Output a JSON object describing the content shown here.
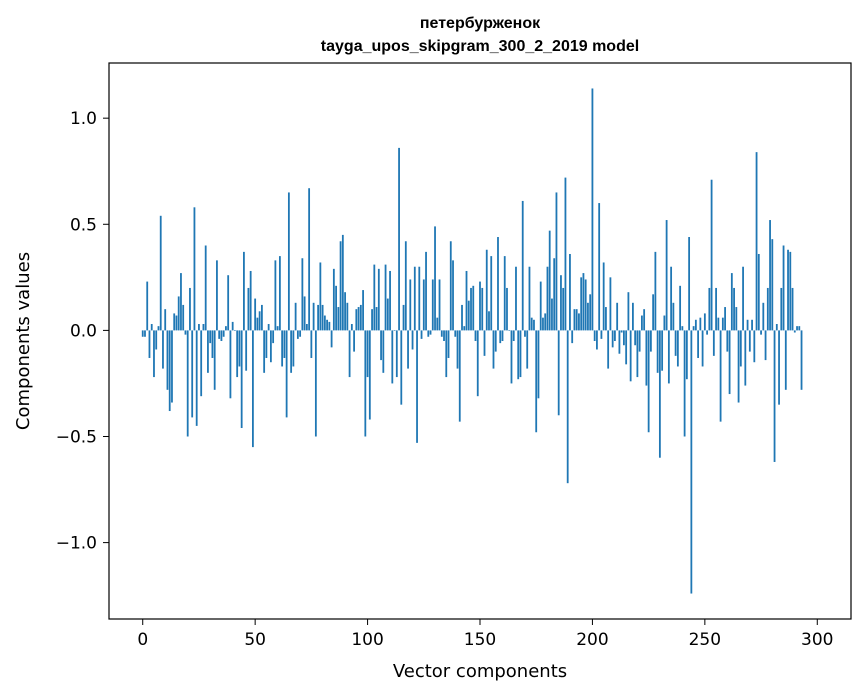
{
  "chart_data": {
    "type": "bar",
    "title": "петербурженок",
    "subtitle": "tayga_upos_skipgram_300_2_2019 model",
    "xlabel": "Vector components",
    "ylabel": "Components values",
    "xlim": [
      -15,
      315
    ],
    "ylim": [
      -1.36,
      1.26
    ],
    "xticks": [
      0,
      50,
      100,
      150,
      200,
      250,
      300
    ],
    "xtick_labels": [
      "0",
      "50",
      "100",
      "150",
      "200",
      "250",
      "300"
    ],
    "yticks": [
      -1.0,
      -0.5,
      0.0,
      0.5,
      1.0
    ],
    "ytick_labels": [
      "−1.0",
      "−0.5",
      "0.0",
      "0.5",
      "1.0"
    ],
    "bar_color": "#1f77b4",
    "values": [
      -0.03,
      -0.03,
      0.23,
      -0.13,
      0.03,
      -0.22,
      -0.09,
      0.02,
      0.54,
      -0.18,
      0.1,
      -0.28,
      -0.38,
      -0.34,
      0.08,
      0.07,
      0.16,
      0.27,
      0.12,
      -0.02,
      -0.5,
      0.2,
      -0.41,
      0.58,
      -0.45,
      0.03,
      -0.31,
      0.03,
      0.4,
      -0.2,
      -0.06,
      -0.13,
      -0.28,
      0.33,
      -0.04,
      -0.05,
      -0.03,
      0.02,
      0.26,
      -0.32,
      0.04,
      0.0,
      -0.22,
      -0.17,
      -0.46,
      0.37,
      -0.19,
      0.2,
      0.28,
      -0.55,
      0.15,
      0.06,
      0.09,
      0.12,
      -0.2,
      -0.13,
      0.03,
      -0.15,
      -0.06,
      0.33,
      0.02,
      0.35,
      -0.17,
      -0.13,
      -0.41,
      0.65,
      -0.2,
      -0.17,
      0.13,
      -0.04,
      -0.03,
      0.34,
      0.16,
      0.03,
      0.67,
      -0.13,
      0.13,
      -0.5,
      0.12,
      0.32,
      0.12,
      0.07,
      0.05,
      0.04,
      -0.08,
      0.29,
      0.21,
      0.11,
      0.42,
      0.45,
      0.18,
      0.13,
      -0.22,
      0.03,
      -0.1,
      0.1,
      0.11,
      0.12,
      0.19,
      -0.5,
      -0.22,
      -0.42,
      0.1,
      0.31,
      0.11,
      0.29,
      -0.14,
      -0.2,
      0.31,
      0.15,
      0.28,
      -0.25,
      0.0,
      -0.22,
      0.86,
      -0.35,
      0.12,
      0.42,
      -0.18,
      0.24,
      -0.09,
      0.3,
      -0.53,
      0.3,
      -0.04,
      0.24,
      0.37,
      -0.03,
      -0.02,
      0.24,
      0.49,
      0.06,
      0.24,
      -0.03,
      -0.05,
      -0.22,
      -0.13,
      0.42,
      0.33,
      -0.03,
      -0.18,
      -0.43,
      0.12,
      0.02,
      0.28,
      0.14,
      0.2,
      0.21,
      -0.05,
      -0.31,
      0.23,
      0.2,
      -0.12,
      0.38,
      0.09,
      0.35,
      -0.18,
      -0.1,
      0.44,
      -0.06,
      -0.05,
      0.35,
      0.2,
      0.0,
      -0.25,
      -0.05,
      0.3,
      -0.23,
      -0.22,
      0.61,
      -0.03,
      -0.18,
      0.3,
      0.06,
      0.05,
      -0.48,
      -0.32,
      0.23,
      0.06,
      0.08,
      0.3,
      0.47,
      0.15,
      0.34,
      0.65,
      -0.4,
      0.26,
      0.2,
      0.72,
      -0.72,
      0.36,
      -0.06,
      0.1,
      0.1,
      0.08,
      0.25,
      0.27,
      0.24,
      0.13,
      0.17,
      1.14,
      -0.05,
      -0.09,
      0.6,
      -0.04,
      0.32,
      0.11,
      -0.18,
      0.25,
      -0.08,
      -0.05,
      0.13,
      -0.11,
      -0.01,
      -0.07,
      -0.16,
      0.18,
      -0.24,
      0.13,
      -0.07,
      -0.22,
      -0.1,
      0.07,
      0.1,
      -0.26,
      -0.48,
      -0.1,
      0.17,
      0.37,
      -0.2,
      -0.6,
      -0.19,
      0.07,
      0.52,
      -0.25,
      0.3,
      0.13,
      -0.12,
      -0.17,
      0.21,
      0.02,
      -0.5,
      -0.23,
      0.44,
      -1.24,
      0.02,
      0.05,
      -0.13,
      0.06,
      -0.17,
      0.08,
      -0.02,
      0.2,
      0.71,
      -0.12,
      0.2,
      0.06,
      -0.43,
      0.06,
      0.11,
      -0.1,
      -0.3,
      0.27,
      0.2,
      0.11,
      -0.34,
      -0.17,
      0.3,
      -0.26,
      0.05,
      -0.1,
      0.05,
      -0.15,
      0.84,
      0.36,
      -0.02,
      0.13,
      -0.14,
      0.2,
      0.52,
      0.43,
      -0.62,
      0.03,
      -0.35,
      0.2,
      0.4,
      -0.28,
      0.38,
      0.37,
      0.2,
      -0.01,
      0.02,
      0.02,
      -0.28
    ]
  }
}
